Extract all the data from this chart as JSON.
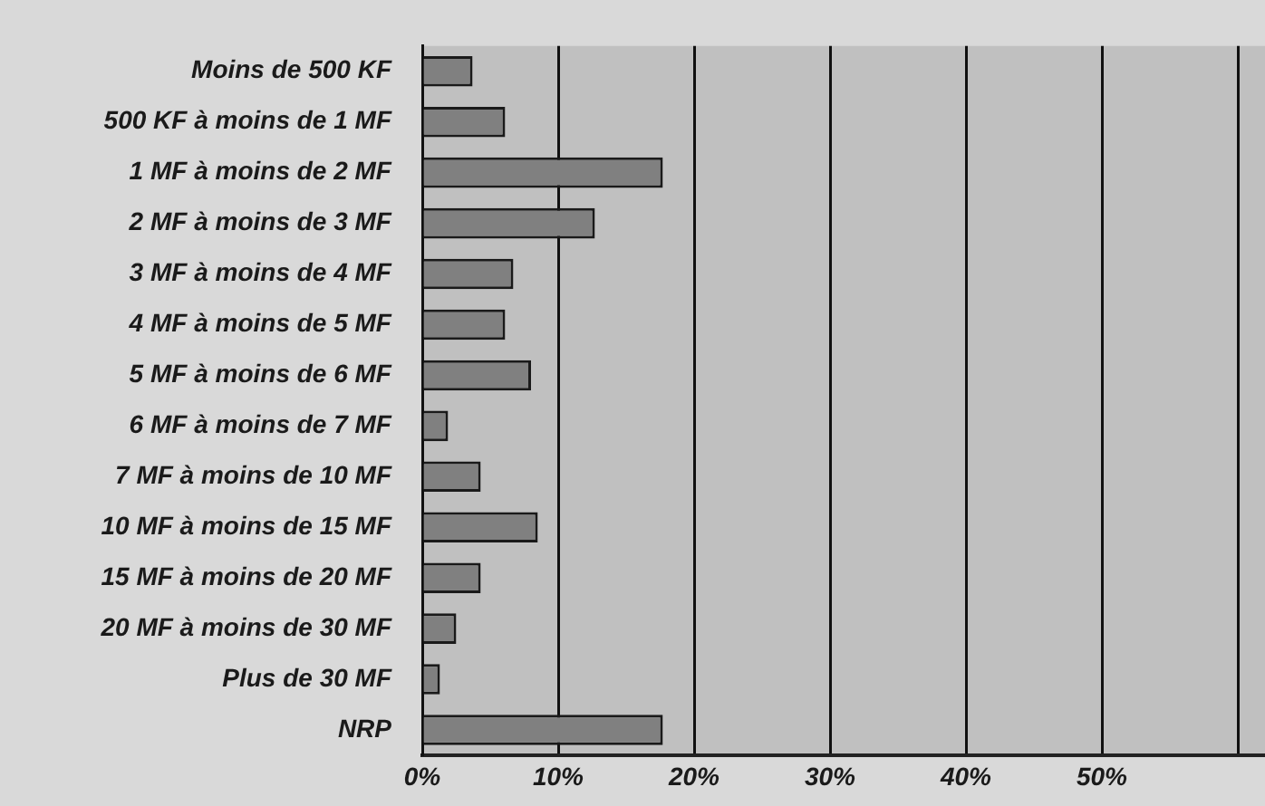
{
  "chart_data": {
    "type": "bar",
    "orientation": "horizontal",
    "categories": [
      "Moins de 500 KF",
      "500 KF à moins de 1 MF",
      "1 MF à moins de 2 MF",
      "2 MF à moins de 3 MF",
      "3 MF à moins de 4 MF",
      "4 MF à moins de 5 MF",
      "5 MF à moins de 6 MF",
      "6 MF à moins de 7 MF",
      "7 MF à moins de 10 MF",
      "10 MF à moins de 15 MF",
      "15 MF à moins de 20 MF",
      "20 MF à moins de 30 MF",
      "Plus de 30 MF",
      "NRP"
    ],
    "values": [
      3.7,
      6.1,
      17.7,
      12.7,
      6.7,
      6.1,
      8.0,
      1.9,
      4.3,
      8.5,
      4.3,
      2.5,
      1.3,
      17.7
    ],
    "color": "#808080",
    "xlim": [
      0,
      62
    ],
    "xticks": [
      {
        "value": 0,
        "label": "0%"
      },
      {
        "value": 10,
        "label": "10%"
      },
      {
        "value": 20,
        "label": "20%"
      },
      {
        "value": 30,
        "label": "30%"
      },
      {
        "value": 40,
        "label": "40%"
      },
      {
        "value": 50,
        "label": "50%"
      },
      {
        "value": 60,
        "label": null
      }
    ],
    "grid": "x"
  }
}
